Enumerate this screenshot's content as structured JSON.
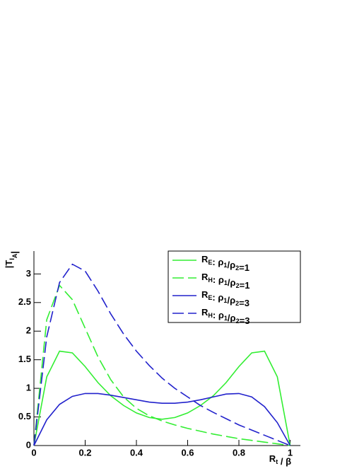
{
  "chart_data": {
    "type": "line",
    "x_label": "Rt / β",
    "y_label": "|TIA|",
    "x": [
      0,
      0.05,
      0.1,
      0.15,
      0.2,
      0.25,
      0.3,
      0.35,
      0.4,
      0.45,
      0.5,
      0.55,
      0.6,
      0.65,
      0.7,
      0.75,
      0.8,
      0.85,
      0.9,
      0.95,
      1
    ],
    "xlim": [
      0,
      1.04
    ],
    "xticks": [
      0,
      0.2,
      0.4,
      0.6,
      0.8,
      1
    ],
    "ylim": [
      0,
      3.4
    ],
    "yticks": [
      0,
      0.5,
      1,
      1.5,
      2,
      2.5,
      3
    ],
    "legend": "top-right",
    "series": [
      {
        "name": "RE: ρ1/ρ2=1",
        "color": "#33ee33",
        "dashed": false,
        "values": [
          0,
          1.2,
          1.65,
          1.62,
          1.38,
          1.1,
          0.87,
          0.7,
          0.57,
          0.49,
          0.46,
          0.49,
          0.57,
          0.7,
          0.87,
          1.1,
          1.38,
          1.62,
          1.65,
          1.2,
          0
        ]
      },
      {
        "name": "RH: ρ1/ρ2=1",
        "color": "#33ee33",
        "dashed": true,
        "values": [
          0,
          2.2,
          2.8,
          2.55,
          2.05,
          1.55,
          1.15,
          0.85,
          0.65,
          0.52,
          0.43,
          0.36,
          0.3,
          0.25,
          0.2,
          0.16,
          0.12,
          0.09,
          0.06,
          0.03,
          0
        ]
      },
      {
        "name": "RE: ρ1/ρ2=3",
        "color": "#2222cc",
        "dashed": false,
        "values": [
          0,
          0.45,
          0.72,
          0.86,
          0.91,
          0.91,
          0.88,
          0.84,
          0.8,
          0.76,
          0.74,
          0.74,
          0.76,
          0.8,
          0.85,
          0.9,
          0.91,
          0.85,
          0.68,
          0.4,
          0
        ]
      },
      {
        "name": "RH: ρ1/ρ2=3",
        "color": "#2222cc",
        "dashed": true,
        "values": [
          0,
          1.9,
          2.85,
          3.17,
          3.05,
          2.7,
          2.3,
          1.95,
          1.65,
          1.4,
          1.18,
          1.0,
          0.85,
          0.7,
          0.58,
          0.47,
          0.36,
          0.27,
          0.18,
          0.09,
          0
        ]
      }
    ]
  }
}
